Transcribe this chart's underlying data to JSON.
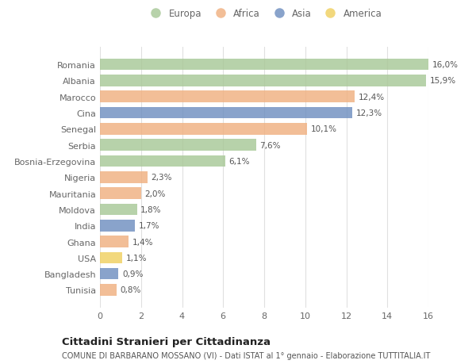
{
  "categories": [
    "Romania",
    "Albania",
    "Marocco",
    "Cina",
    "Senegal",
    "Serbia",
    "Bosnia-Erzegovina",
    "Nigeria",
    "Mauritania",
    "Moldova",
    "India",
    "Ghana",
    "USA",
    "Bangladesh",
    "Tunisia"
  ],
  "values": [
    16.0,
    15.9,
    12.4,
    12.3,
    10.1,
    7.6,
    6.1,
    2.3,
    2.0,
    1.8,
    1.7,
    1.4,
    1.1,
    0.9,
    0.8
  ],
  "labels": [
    "16,0%",
    "15,9%",
    "12,4%",
    "12,3%",
    "10,1%",
    "7,6%",
    "6,1%",
    "2,3%",
    "2,0%",
    "1,8%",
    "1,7%",
    "1,4%",
    "1,1%",
    "0,9%",
    "0,8%"
  ],
  "continents": [
    "Europa",
    "Europa",
    "Africa",
    "Asia",
    "Africa",
    "Europa",
    "Europa",
    "Africa",
    "Africa",
    "Europa",
    "Asia",
    "Africa",
    "America",
    "Asia",
    "Africa"
  ],
  "colors": {
    "Europa": "#a8c897",
    "Africa": "#f0b080",
    "Asia": "#6f8fc0",
    "America": "#f0d060"
  },
  "legend_order": [
    "Europa",
    "Africa",
    "Asia",
    "America"
  ],
  "xlim": [
    0,
    16
  ],
  "xticks": [
    0,
    2,
    4,
    6,
    8,
    10,
    12,
    14,
    16
  ],
  "title": "Cittadini Stranieri per Cittadinanza",
  "subtitle": "COMUNE DI BARBARANO MOSSANO (VI) - Dati ISTAT al 1° gennaio - Elaborazione TUTTITALIA.IT",
  "bg_color": "#ffffff",
  "grid_color": "#e0e0e0",
  "text_color": "#666666",
  "label_color": "#555555"
}
